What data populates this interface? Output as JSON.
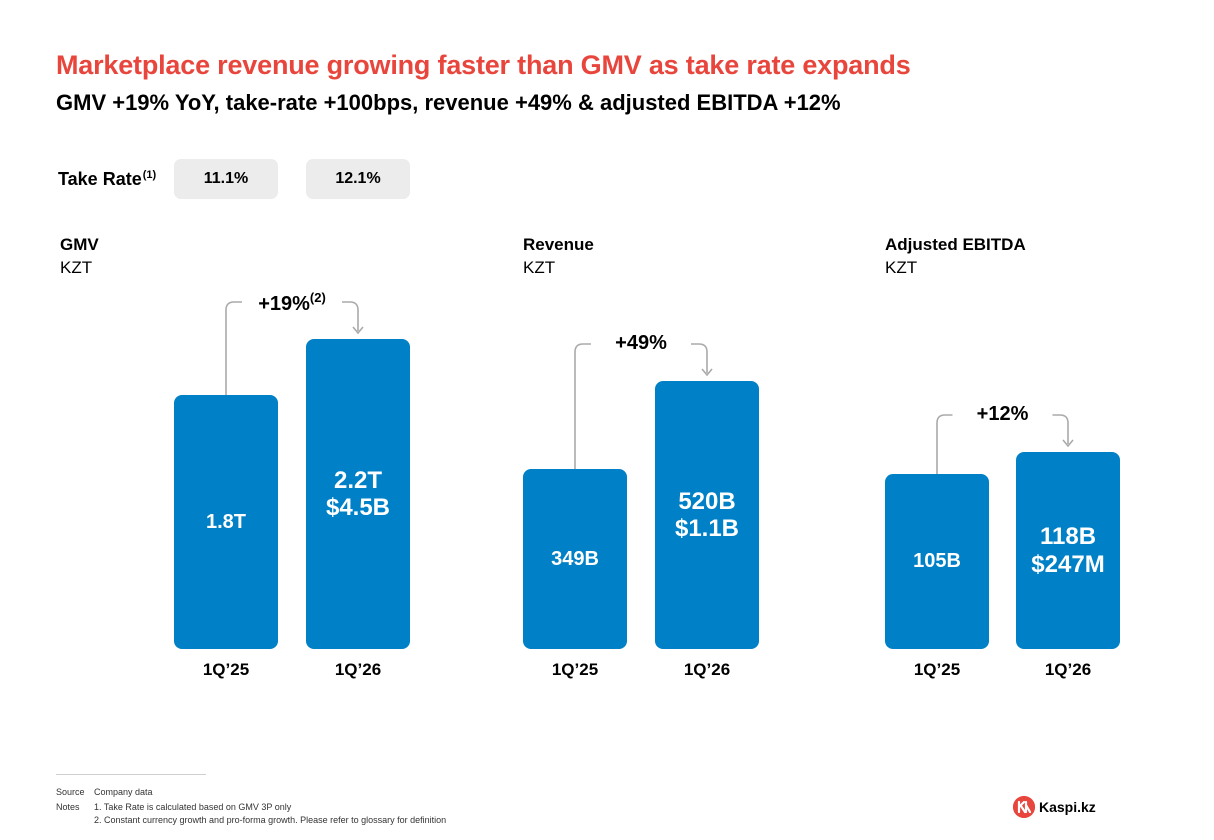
{
  "header": {
    "title": "Marketplace revenue growing faster than GMV as take rate expands",
    "subtitle": "GMV +19% YoY, take-rate +100bps, revenue +49% & adjusted EBITDA +12%"
  },
  "take_rate": {
    "label": "Take Rate",
    "note_ref": "(1)",
    "values": [
      "11.1%",
      "12.1%"
    ]
  },
  "chart_data": [
    {
      "type": "bar",
      "title": "GMV",
      "ylabel": "KZT",
      "categories": [
        "1Q’25",
        "1Q’26"
      ],
      "series": [
        {
          "values": [
            1.8,
            2.2
          ]
        }
      ],
      "value_labels": [
        "1.8T",
        "2.2T"
      ],
      "usd_labels": [
        "",
        "$4.5B"
      ],
      "growth_label": "+19%",
      "growth_note_ref": "(2)"
    },
    {
      "type": "bar",
      "title": "Revenue",
      "ylabel": "KZT",
      "categories": [
        "1Q’25",
        "1Q’26"
      ],
      "series": [
        {
          "values": [
            349,
            520
          ]
        }
      ],
      "value_labels": [
        "349B",
        "520B"
      ],
      "usd_labels": [
        "",
        "$1.1B"
      ],
      "growth_label": "+49%",
      "growth_note_ref": ""
    },
    {
      "type": "bar",
      "title": "Adjusted EBITDA",
      "ylabel": "KZT",
      "categories": [
        "1Q’25",
        "1Q’26"
      ],
      "series": [
        {
          "values": [
            105,
            118
          ]
        }
      ],
      "value_labels": [
        "105B",
        "118B"
      ],
      "usd_labels": [
        "",
        "$247M"
      ],
      "growth_label": "+12%",
      "growth_note_ref": ""
    }
  ],
  "footer": {
    "source_label": "Source",
    "source_text": "Company data",
    "notes_label": "Notes",
    "notes": [
      "1. Take Rate is calculated based on GMV 3P only",
      "2. Constant currency growth and pro-forma growth. Please refer to glossary for definition"
    ]
  },
  "brand": {
    "logo_text": "Kaspi.kz",
    "accent_color": "#e8453c",
    "bar_color": "#0080c6"
  }
}
